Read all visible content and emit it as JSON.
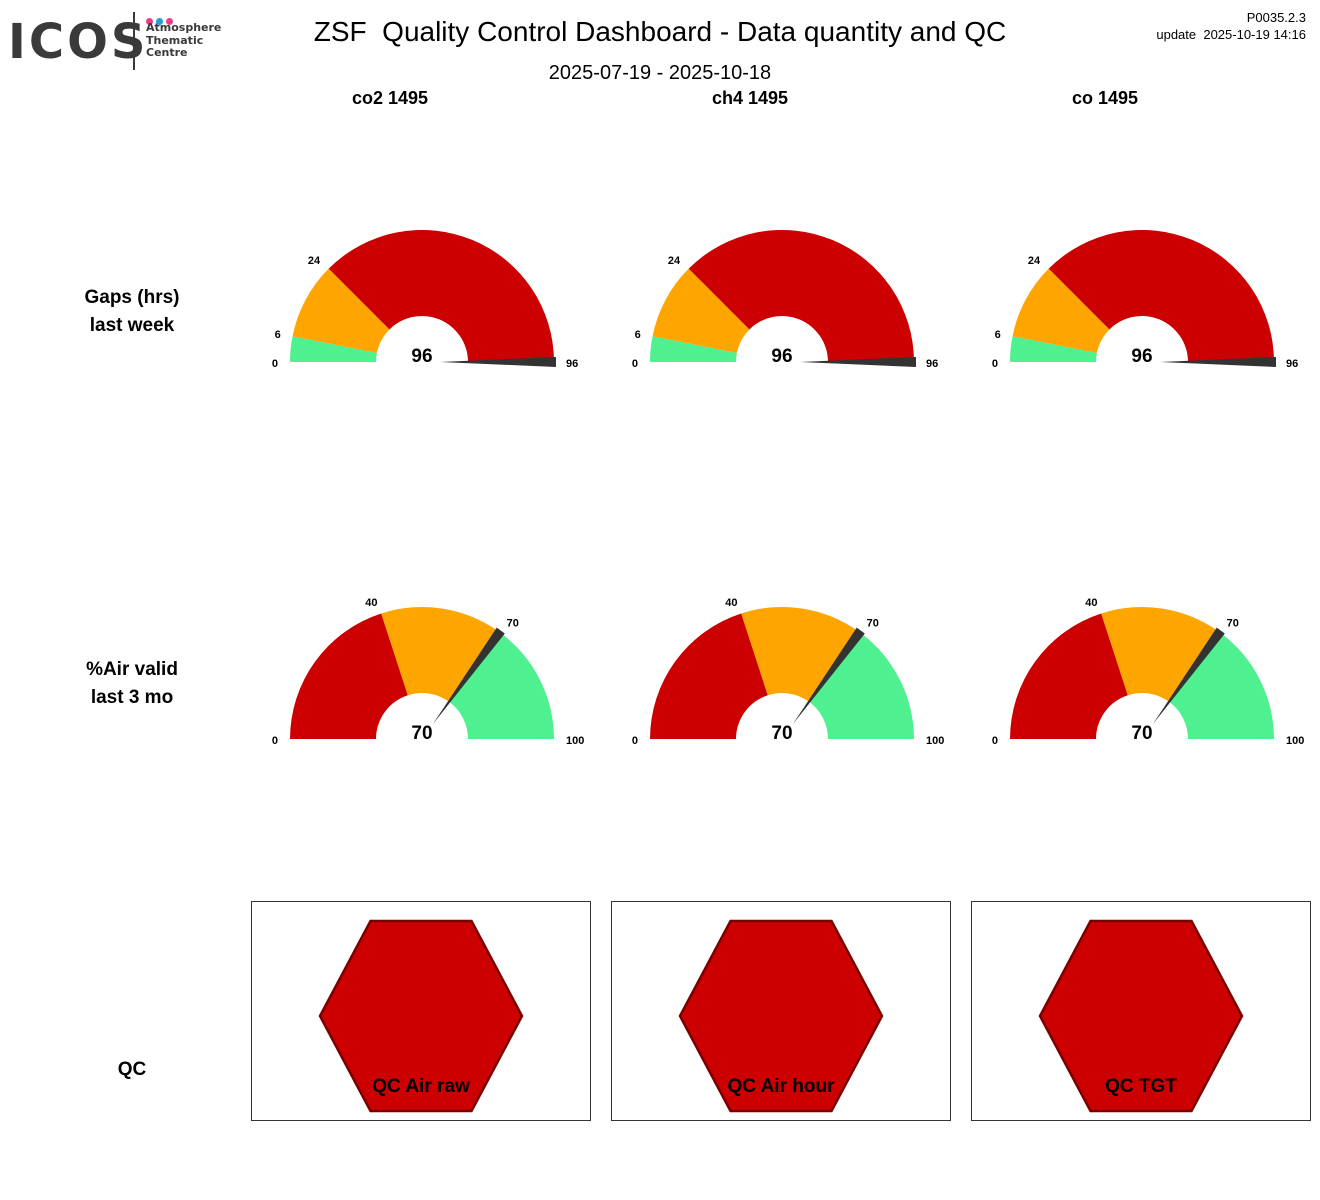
{
  "logo": {
    "word": "ICOS",
    "lines": [
      "Atmosphere",
      "Thematic",
      "Centre"
    ],
    "dot_colors": [
      "#e83e8c",
      "#1fa0dc",
      "#e83e8c"
    ]
  },
  "header": {
    "title": "ZSF  Quality Control Dashboard - Data quantity and QC",
    "date_range": "2025-07-19 - 2025-10-18",
    "version": "P0035.2.3",
    "update": "update  2025-10-19 14:16"
  },
  "columns": [
    "co2 1495",
    "ch4 1495",
    "co 1495"
  ],
  "rows": {
    "gaps": {
      "line1": "Gaps (hrs)",
      "line2": "last week"
    },
    "air": {
      "line1": "%Air valid",
      "line2": "last 3 mo"
    },
    "qc": {
      "label": "QC"
    }
  },
  "colors": {
    "green": "#4ef090",
    "orange": "#ffa500",
    "red": "#cc0000",
    "needle": "#333333",
    "hex_border": "#7a0000"
  },
  "chart_data": [
    {
      "type": "gauge",
      "name": "Gaps (hrs) last week",
      "min": 0,
      "max": 96,
      "bands": [
        {
          "from": 0,
          "to": 6,
          "color": "green"
        },
        {
          "from": 6,
          "to": 24,
          "color": "orange"
        },
        {
          "from": 24,
          "to": 96,
          "color": "red"
        }
      ],
      "tick_labels": [
        "0",
        "6",
        "24",
        "96"
      ],
      "values": {
        "co2 1495": 96,
        "ch4 1495": 96,
        "co 1495": 96
      }
    },
    {
      "type": "gauge",
      "name": "%Air valid last 3 mo",
      "min": 0,
      "max": 100,
      "bands": [
        {
          "from": 0,
          "to": 40,
          "color": "red"
        },
        {
          "from": 40,
          "to": 70,
          "color": "orange"
        },
        {
          "from": 70,
          "to": 100,
          "color": "green"
        }
      ],
      "tick_labels": [
        "0",
        "40",
        "70",
        "100"
      ],
      "values": {
        "co2 1495": 70,
        "ch4 1495": 70,
        "co 1495": 70
      }
    },
    {
      "type": "status",
      "name": "QC",
      "items": [
        {
          "label": "QC Air raw",
          "status": "red"
        },
        {
          "label": "QC Air hour",
          "status": "red"
        },
        {
          "label": "QC TGT",
          "status": "red"
        }
      ]
    }
  ]
}
